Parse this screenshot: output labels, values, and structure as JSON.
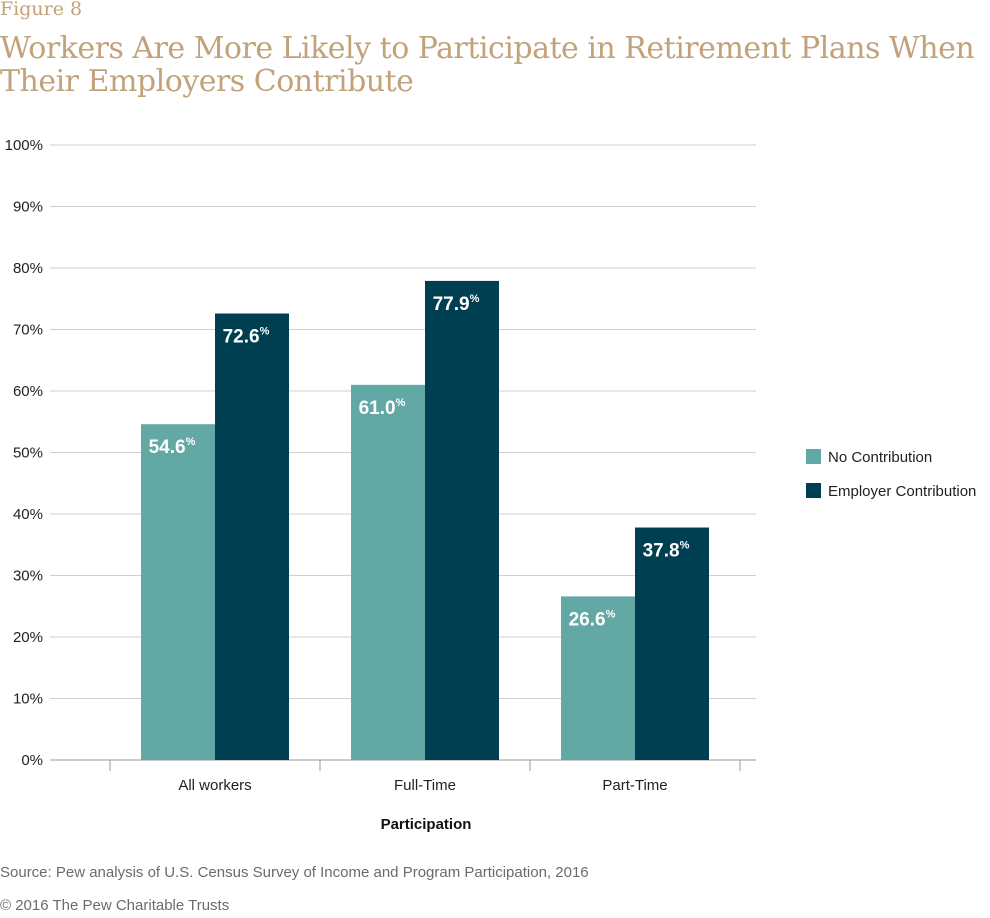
{
  "figure_label": "Figure 8",
  "source_note": "Source: Pew analysis of U.S. Census Survey of Income and Program Participation, 2016",
  "copyright": "© 2016 The Pew Charitable Trusts",
  "colors": {
    "no_contribution": "#62a8a5",
    "employer_contribution": "#003f52",
    "grid": "#cfcfcf",
    "title": "#c2a27a"
  },
  "chart_data": {
    "type": "bar",
    "title": "Workers Are More Likely to Participate in Retirement Plans When Their Employers Contribute",
    "xlabel": "Participation",
    "ylabel": "",
    "ylim": [
      0,
      100
    ],
    "yticks": [
      "0%",
      "10%",
      "20%",
      "30%",
      "40%",
      "50%",
      "60%",
      "70%",
      "80%",
      "90%",
      "100%"
    ],
    "categories": [
      "All workers",
      "Full-Time",
      "Part-Time"
    ],
    "series": [
      {
        "name": "No Contribution",
        "values": [
          54.6,
          61.0,
          26.6
        ],
        "labels": [
          "54.6",
          "61.0",
          "26.6"
        ]
      },
      {
        "name": "Employer Contribution",
        "values": [
          72.6,
          77.9,
          37.8
        ],
        "labels": [
          "72.6",
          "77.9",
          "37.8"
        ]
      }
    ],
    "value_suffix": "%",
    "legend_position": "right",
    "grid": true
  }
}
